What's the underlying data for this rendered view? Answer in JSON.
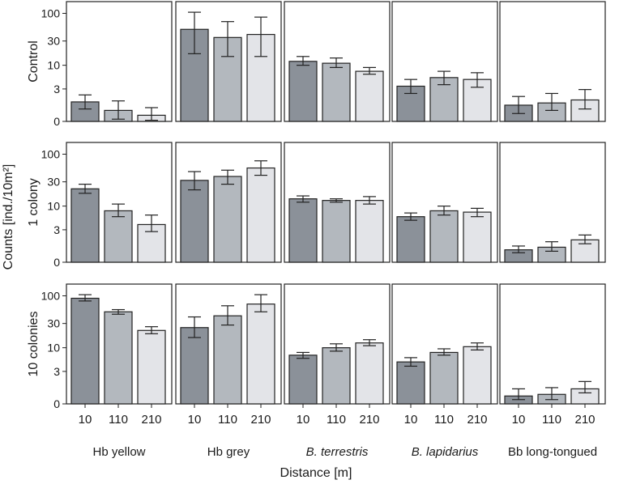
{
  "chart_data": {
    "type": "bar",
    "ylabel": "Counts [ind./10m²]",
    "xlabel": "Distance [m]",
    "yscale": "log(x+1)",
    "ylim": [
      0,
      160
    ],
    "yticks": [
      "0",
      "3",
      "10",
      "30",
      "100"
    ],
    "categories": [
      "10",
      "110",
      "210"
    ],
    "bar_colors": [
      "#8b9199",
      "#b3b8be",
      "#e3e4e8"
    ],
    "rows": [
      "Control",
      "1 colony",
      "10 colonies"
    ],
    "columns": [
      {
        "label": "Hb yellow",
        "italic": false
      },
      {
        "label": "Hb grey",
        "italic": false
      },
      {
        "label": "B. terrestris",
        "italic": true
      },
      {
        "label": "B. lapidarius",
        "italic": true
      },
      {
        "label": "Bb long-tongued",
        "italic": false
      }
    ],
    "panels": [
      [
        {
          "values": [
            1.3,
            0.6,
            0.3
          ],
          "err_low": [
            0.7,
            0.1,
            0.05
          ],
          "err_high": [
            2.1,
            1.4,
            0.8
          ]
        },
        {
          "values": [
            50,
            35,
            40
          ],
          "err_low": [
            17,
            15,
            15
          ],
          "err_high": [
            105,
            70,
            85
          ]
        },
        {
          "values": [
            12,
            11,
            7.5
          ],
          "err_low": [
            10,
            9,
            6.5
          ],
          "err_high": [
            15,
            14,
            9
          ]
        },
        {
          "values": [
            3.5,
            5.5,
            5
          ],
          "err_low": [
            2.3,
            3.8,
            3.3
          ],
          "err_high": [
            5,
            7.5,
            7
          ]
        },
        {
          "values": [
            1.0,
            1.2,
            1.5
          ],
          "err_low": [
            0.4,
            0.6,
            0.7
          ],
          "err_high": [
            1.9,
            2.3,
            2.9
          ]
        }
      ],
      [
        {
          "values": [
            22,
            8,
            4
          ],
          "err_low": [
            18,
            6,
            2.7
          ],
          "err_high": [
            27,
            11,
            6.5
          ]
        },
        {
          "values": [
            32,
            38,
            55
          ],
          "err_low": [
            21,
            27,
            40
          ],
          "err_high": [
            47,
            50,
            75
          ]
        },
        {
          "values": [
            14,
            13,
            13
          ],
          "err_low": [
            12,
            12,
            11
          ],
          "err_high": [
            16,
            14,
            15.5
          ]
        },
        {
          "values": [
            6,
            8,
            7.5
          ],
          "err_low": [
            5,
            6.5,
            6
          ],
          "err_high": [
            7.2,
            10,
            9
          ]
        },
        {
          "values": [
            0.7,
            0.9,
            1.6
          ],
          "err_low": [
            0.5,
            0.6,
            1.2
          ],
          "err_high": [
            1.0,
            1.4,
            2.2
          ]
        }
      ],
      [
        {
          "values": [
            90,
            50,
            22
          ],
          "err_low": [
            80,
            45,
            19
          ],
          "err_high": [
            105,
            55,
            26
          ]
        },
        {
          "values": [
            25,
            42,
            70
          ],
          "err_low": [
            16,
            28,
            50
          ],
          "err_high": [
            40,
            65,
            105
          ]
        },
        {
          "values": [
            7,
            10,
            12.5
          ],
          "err_low": [
            6,
            8.5,
            11
          ],
          "err_high": [
            8,
            12,
            14.5
          ]
        },
        {
          "values": [
            5,
            8,
            10.5
          ],
          "err_low": [
            4,
            7,
            9
          ],
          "err_high": [
            6.2,
            9.5,
            12.5
          ]
        },
        {
          "values": [
            0.4,
            0.5,
            0.9
          ],
          "err_low": [
            0.2,
            0.2,
            0.6
          ],
          "err_high": [
            0.9,
            1.0,
            1.6
          ]
        }
      ]
    ]
  }
}
